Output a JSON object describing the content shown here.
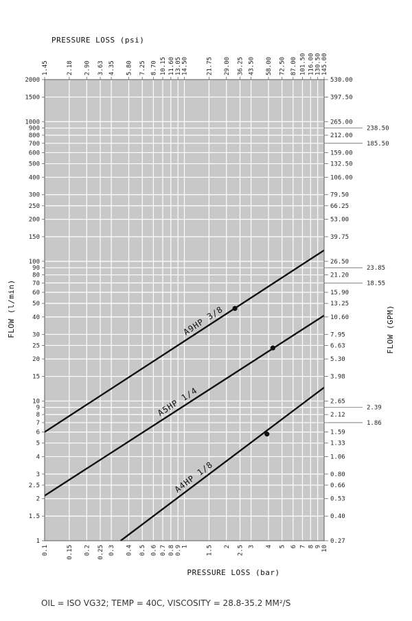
{
  "footnote": "OIL = ISO VG32; TEMP = 40C, VISCOSITY = 28.8-35.2 MM²/S",
  "colors": {
    "plot_bg": "#c8c8c8",
    "grid": "#ffffff",
    "line": "#111111"
  },
  "chart_data": {
    "type": "line",
    "scale": "log-log",
    "grid": true,
    "xlabel": "PRESSURE LOSS (bar)",
    "x2label": "PRESSURE LOSS (psi)",
    "ylabel": "FLOW (l/min)",
    "y2label": "FLOW (GPM)",
    "xlim": [
      0.1,
      10
    ],
    "ylim": [
      1,
      2000
    ],
    "x_ticks": [
      {
        "v": 0.1,
        "label": "0.1"
      },
      {
        "v": 0.15,
        "label": "0.15"
      },
      {
        "v": 0.2,
        "label": "0.2"
      },
      {
        "v": 0.25,
        "label": "0.25"
      },
      {
        "v": 0.3,
        "label": "0.3"
      },
      {
        "v": 0.4,
        "label": "0.4"
      },
      {
        "v": 0.5,
        "label": "0.5"
      },
      {
        "v": 0.6,
        "label": "0.6"
      },
      {
        "v": 0.7,
        "label": "0.7"
      },
      {
        "v": 0.8,
        "label": "0.8"
      },
      {
        "v": 0.9,
        "label": "0.9"
      },
      {
        "v": 1,
        "label": "1"
      },
      {
        "v": 1.5,
        "label": "1.5"
      },
      {
        "v": 2,
        "label": "2"
      },
      {
        "v": 2.5,
        "label": "2.5"
      },
      {
        "v": 3,
        "label": "3"
      },
      {
        "v": 4,
        "label": "4"
      },
      {
        "v": 5,
        "label": "5"
      },
      {
        "v": 6,
        "label": "6"
      },
      {
        "v": 7,
        "label": "7"
      },
      {
        "v": 8,
        "label": "8"
      },
      {
        "v": 9,
        "label": "9"
      },
      {
        "v": 10,
        "label": "10"
      }
    ],
    "x2_ticks": [
      {
        "v": 0.1,
        "label": "1.45"
      },
      {
        "v": 0.15,
        "label": "2.18"
      },
      {
        "v": 0.2,
        "label": "2.90"
      },
      {
        "v": 0.25,
        "label": "3.63"
      },
      {
        "v": 0.3,
        "label": "4.35"
      },
      {
        "v": 0.4,
        "label": "5.80"
      },
      {
        "v": 0.5,
        "label": "7.25"
      },
      {
        "v": 0.6,
        "label": "8.70"
      },
      {
        "v": 0.7,
        "label": "10.15"
      },
      {
        "v": 0.8,
        "label": "11.60"
      },
      {
        "v": 0.9,
        "label": "13.05"
      },
      {
        "v": 1,
        "label": "14.50"
      },
      {
        "v": 1.5,
        "label": "21.75"
      },
      {
        "v": 2,
        "label": "29.00"
      },
      {
        "v": 2.5,
        "label": "36.25"
      },
      {
        "v": 3,
        "label": "43.50"
      },
      {
        "v": 4,
        "label": "58.00"
      },
      {
        "v": 5,
        "label": "72.50"
      },
      {
        "v": 6,
        "label": "87.00"
      },
      {
        "v": 7,
        "label": "101.50"
      },
      {
        "v": 8,
        "label": "116.00"
      },
      {
        "v": 9,
        "label": "130.50"
      },
      {
        "v": 10,
        "label": "145.00"
      }
    ],
    "y_ticks": [
      {
        "v": 1,
        "label": "1"
      },
      {
        "v": 1.5,
        "label": "1.5"
      },
      {
        "v": 2,
        "label": "2"
      },
      {
        "v": 2.5,
        "label": "2.5"
      },
      {
        "v": 3,
        "label": "3"
      },
      {
        "v": 4,
        "label": "4"
      },
      {
        "v": 5,
        "label": "5"
      },
      {
        "v": 6,
        "label": "6"
      },
      {
        "v": 7,
        "label": "7"
      },
      {
        "v": 8,
        "label": "8"
      },
      {
        "v": 9,
        "label": "9"
      },
      {
        "v": 10,
        "label": "10"
      },
      {
        "v": 15,
        "label": "15"
      },
      {
        "v": 20,
        "label": "20"
      },
      {
        "v": 25,
        "label": "25"
      },
      {
        "v": 30,
        "label": "30"
      },
      {
        "v": 40,
        "label": "40"
      },
      {
        "v": 50,
        "label": "50"
      },
      {
        "v": 60,
        "label": "60"
      },
      {
        "v": 70,
        "label": "70"
      },
      {
        "v": 80,
        "label": "80"
      },
      {
        "v": 90,
        "label": "90"
      },
      {
        "v": 100,
        "label": "100"
      },
      {
        "v": 150,
        "label": "150"
      },
      {
        "v": 200,
        "label": "200"
      },
      {
        "v": 250,
        "label": "250"
      },
      {
        "v": 300,
        "label": "300"
      },
      {
        "v": 400,
        "label": "400"
      },
      {
        "v": 500,
        "label": "500"
      },
      {
        "v": 600,
        "label": "600"
      },
      {
        "v": 700,
        "label": "700"
      },
      {
        "v": 800,
        "label": "800"
      },
      {
        "v": 900,
        "label": "900"
      },
      {
        "v": 1000,
        "label": "1000"
      },
      {
        "v": 1500,
        "label": "1500"
      },
      {
        "v": 2000,
        "label": "2000"
      }
    ],
    "y2_ticks": [
      {
        "v": 1,
        "label": "0.27",
        "lead": false
      },
      {
        "v": 1.5,
        "label": "0.40",
        "lead": false
      },
      {
        "v": 2,
        "label": "0.53",
        "lead": false
      },
      {
        "v": 2.5,
        "label": "0.66",
        "lead": false
      },
      {
        "v": 3,
        "label": "0.80",
        "lead": false
      },
      {
        "v": 4,
        "label": "1.06",
        "lead": false
      },
      {
        "v": 5,
        "label": "1.33",
        "lead": false
      },
      {
        "v": 6,
        "label": "1.59",
        "lead": false
      },
      {
        "v": 7,
        "label": "1.86",
        "lead": true
      },
      {
        "v": 8,
        "label": "2.12",
        "lead": false
      },
      {
        "v": 9,
        "label": "2.39",
        "lead": true
      },
      {
        "v": 10,
        "label": "2.65",
        "lead": false
      },
      {
        "v": 15,
        "label": "3.98",
        "lead": false
      },
      {
        "v": 20,
        "label": "5.30",
        "lead": false
      },
      {
        "v": 25,
        "label": "6.63",
        "lead": false
      },
      {
        "v": 30,
        "label": "7.95",
        "lead": false
      },
      {
        "v": 40,
        "label": "10.60",
        "lead": false
      },
      {
        "v": 50,
        "label": "13.25",
        "lead": false
      },
      {
        "v": 60,
        "label": "15.90",
        "lead": false
      },
      {
        "v": 70,
        "label": "18.55",
        "lead": true
      },
      {
        "v": 80,
        "label": "21.20",
        "lead": false
      },
      {
        "v": 90,
        "label": "23.85",
        "lead": true
      },
      {
        "v": 100,
        "label": "26.50",
        "lead": false
      },
      {
        "v": 150,
        "label": "39.75",
        "lead": false
      },
      {
        "v": 200,
        "label": "53.00",
        "lead": false
      },
      {
        "v": 250,
        "label": "66.25",
        "lead": false
      },
      {
        "v": 300,
        "label": "79.50",
        "lead": false
      },
      {
        "v": 400,
        "label": "106.00",
        "lead": false
      },
      {
        "v": 500,
        "label": "132.50",
        "lead": false
      },
      {
        "v": 600,
        "label": "159.00",
        "lead": false
      },
      {
        "v": 700,
        "label": "185.50",
        "lead": true
      },
      {
        "v": 800,
        "label": "212.00",
        "lead": false
      },
      {
        "v": 900,
        "label": "238.50",
        "lead": true
      },
      {
        "v": 1000,
        "label": "265.00",
        "lead": false
      },
      {
        "v": 1500,
        "label": "397.50",
        "lead": false
      },
      {
        "v": 2000,
        "label": "530.00",
        "lead": false
      }
    ],
    "series": [
      {
        "name": "A9HP 3/8",
        "x": [
          0.1,
          10
        ],
        "y": [
          6,
          120
        ],
        "marker": {
          "x": 2.3,
          "y": 46
        },
        "label_at": 1.45
      },
      {
        "name": "A5HP 1/4",
        "x": [
          0.1,
          10
        ],
        "y": [
          2.1,
          41
        ],
        "marker": {
          "x": 4.3,
          "y": 24
        },
        "label_at": 0.95
      },
      {
        "name": "A4HP 1/8",
        "x": [
          0.35,
          10
        ],
        "y": [
          1,
          12.5
        ],
        "marker": {
          "x": 3.9,
          "y": 5.8
        },
        "label_at": 1.25
      }
    ]
  }
}
